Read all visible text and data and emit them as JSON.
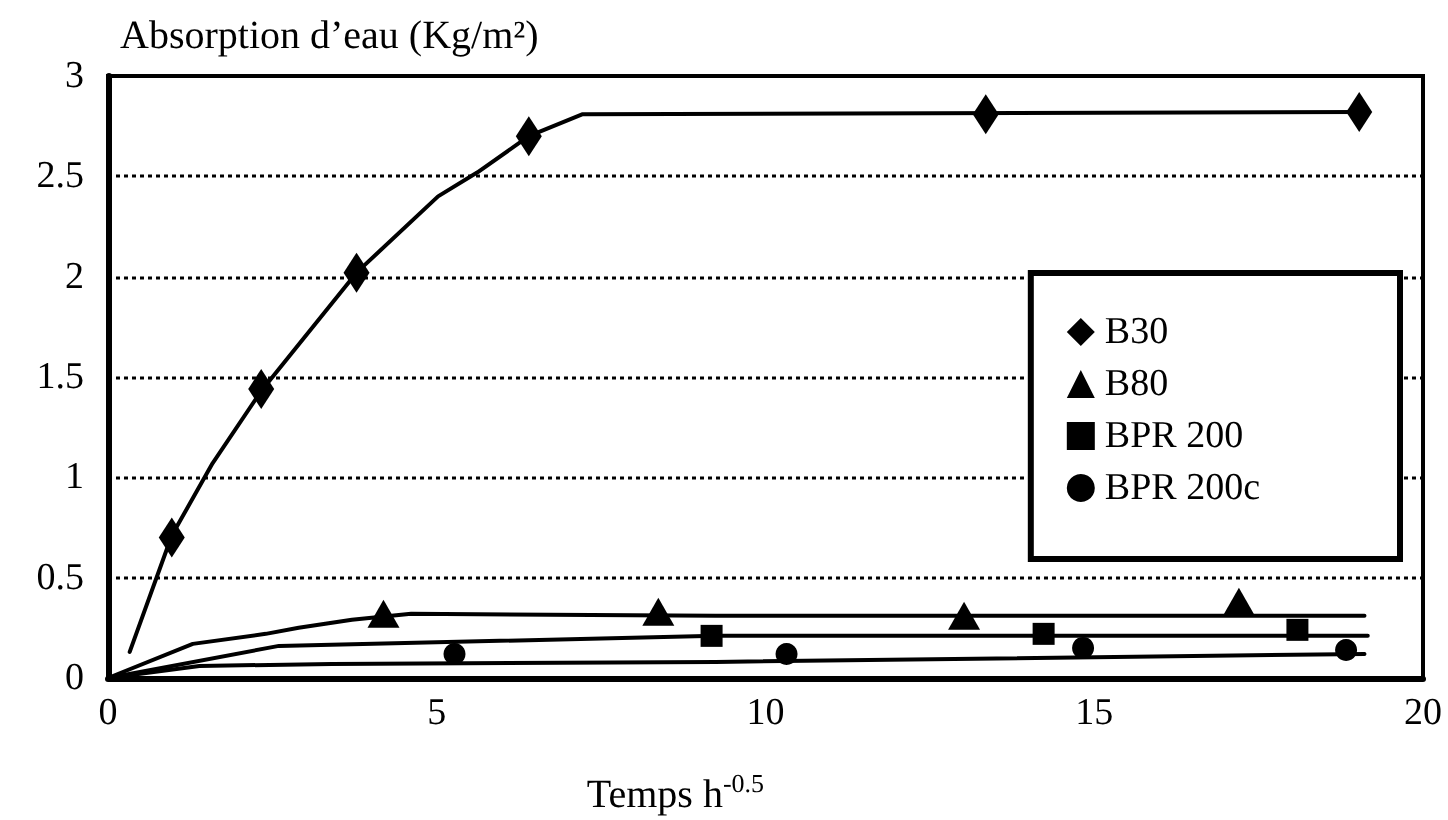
{
  "chart_data": {
    "type": "scatter",
    "xlabel": "Temps h$^{-0.5}$",
    "ylabel": "Absorption d’eau (Kg/m²)",
    "xlim": [
      0,
      20
    ],
    "xticks": [
      0,
      5,
      10,
      15,
      20
    ],
    "ylim": [
      0,
      3
    ],
    "yticks": [
      0,
      0.5,
      1,
      1.5,
      2,
      2.5,
      3
    ],
    "grid": "y",
    "legend": "right",
    "series": [
      {
        "name": "B30",
        "color": "#000000",
        "marker": "diamond",
        "x": [
          0.97,
          2.33,
          3.78,
          6.4,
          13.35,
          19.03
        ],
        "values": [
          0.7,
          1.44,
          2.02,
          2.7,
          2.81,
          2.82
        ]
      },
      {
        "name": "B80",
        "color": "#000000",
        "marker": "triangle",
        "x": [
          4.19,
          8.37,
          13.02,
          17.2
        ],
        "values": [
          0.32,
          0.33,
          0.31,
          0.38
        ]
      },
      {
        "name": "BPR 200",
        "color": "#000000",
        "marker": "square",
        "x": [
          9.18,
          14.23,
          18.09
        ],
        "values": [
          0.21,
          0.22,
          0.24
        ]
      },
      {
        "name": "BPR 200c",
        "color": "#000000",
        "marker": "circle",
        "x": [
          5.27,
          10.32,
          14.83,
          18.83
        ],
        "values": [
          0.12,
          0.12,
          0.15,
          0.14
        ]
      },
      {
        "type": "line",
        "color": "#000000",
        "marker": "none",
        "line_style": "solid",
        "x": [
          0.33,
          0.97,
          1.59,
          2.33,
          3.78,
          5.02,
          5.62,
          6.4,
          7.22,
          19.03
        ],
        "values": [
          0.13,
          0.71,
          1.07,
          1.43,
          2.02,
          2.4,
          2.52,
          2.7,
          2.81,
          2.82
        ]
      },
      {
        "type": "line",
        "color": "#000000",
        "marker": "none",
        "line_style": "solid",
        "x": [
          0,
          1.29,
          2.4,
          2.9,
          3.71,
          4.61,
          9.24,
          19.11
        ],
        "values": [
          0,
          0.17,
          0.22,
          0.25,
          0.29,
          0.32,
          0.31,
          0.31
        ]
      },
      {
        "type": "line",
        "color": "#000000",
        "marker": "none",
        "line_style": "solid",
        "x": [
          0,
          2.6,
          9.24,
          19.16
        ],
        "values": [
          0,
          0.16,
          0.21,
          0.21
        ]
      },
      {
        "type": "line",
        "color": "#000000",
        "marker": "none",
        "line_style": "solid",
        "x": [
          0,
          1.39,
          3.4,
          9.24,
          19.11
        ],
        "values": [
          0,
          0.06,
          0.07,
          0.08,
          0.12
        ]
      }
    ]
  }
}
